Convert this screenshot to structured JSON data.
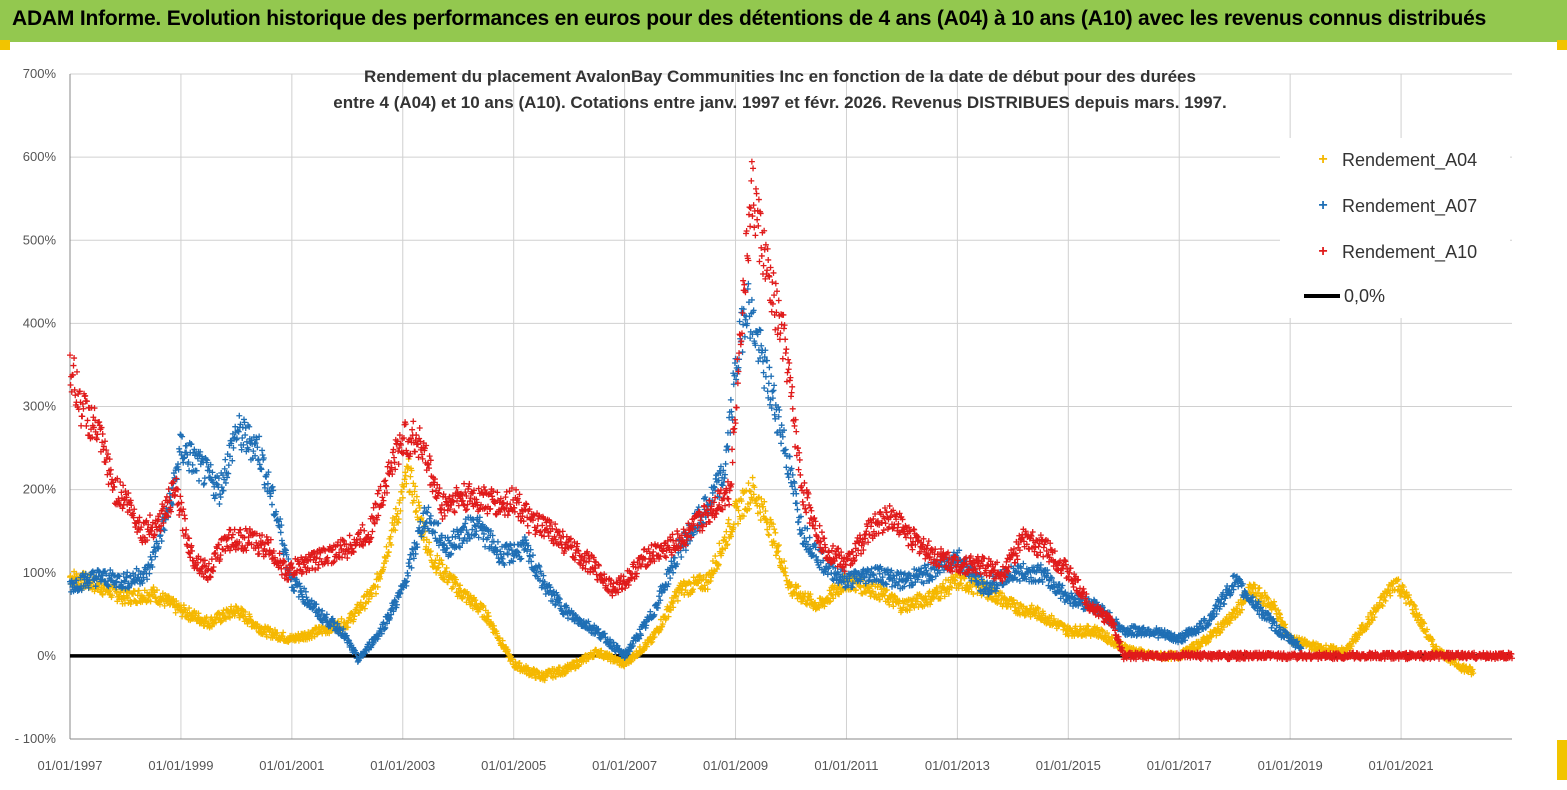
{
  "header": {
    "banner_title": "ADAM Informe. Evolution historique des performances en euros pour des détentions de 4 ans (A04) à 10 ans (A10) avec les revenus connus distribués"
  },
  "colors": {
    "banner": "#93c84f",
    "corner": "#f2c400",
    "A04": "#f5b800",
    "A07": "#1f6fb5",
    "A10": "#e01b1b",
    "zero": "#000000",
    "grid": "#d0d0d0"
  },
  "chart_data": {
    "type": "scatter",
    "title_line1": "Rendement du placement AvalonBay Communities Inc en fonction de la date de début pour des durées",
    "title_line2": "entre 4 (A04) et 10 ans (A10). Cotations entre janv. 1997 et févr. 2026. Revenus DISTRIBUES depuis mars. 1997.",
    "xlabel": "",
    "ylabel": "",
    "ylim": [
      -100,
      700
    ],
    "yticks": [
      "- 100%",
      "0%",
      "100%",
      "200%",
      "300%",
      "400%",
      "500%",
      "600%",
      "700%"
    ],
    "xlim": [
      1997.0,
      2023.0
    ],
    "xticks": [
      "01/01/1997",
      "01/01/1999",
      "01/01/2001",
      "01/01/2003",
      "01/01/2005",
      "01/01/2007",
      "01/01/2009",
      "01/01/2011",
      "01/01/2013",
      "01/01/2015",
      "01/01/2017",
      "01/01/2019",
      "01/01/2021"
    ],
    "grid": true,
    "legend_position": "top-right",
    "series": [
      {
        "name": "Rendement_A04",
        "marker": "+",
        "x": [
          1997.0,
          1997.5,
          1998.0,
          1998.5,
          1999.0,
          1999.5,
          2000.0,
          2000.5,
          2001.0,
          2001.5,
          2002.0,
          2002.5,
          2002.9,
          2003.1,
          2003.5,
          2004.0,
          2004.5,
          2005.0,
          2005.5,
          2006.0,
          2006.5,
          2007.0,
          2007.5,
          2008.0,
          2008.5,
          2009.0,
          2009.3,
          2009.6,
          2010.0,
          2010.5,
          2011.0,
          2011.5,
          2012.0,
          2012.5,
          2013.0,
          2013.5,
          2014.0,
          2014.5,
          2015.0,
          2015.5,
          2016.0,
          2016.5,
          2017.0,
          2017.5,
          2018.0,
          2018.3,
          2018.7,
          2019.0,
          2019.5,
          2020.0,
          2020.5,
          2020.9,
          2021.2,
          2021.6,
          2022.0,
          2022.3
        ],
        "y": [
          95,
          85,
          70,
          75,
          55,
          40,
          55,
          30,
          20,
          30,
          40,
          80,
          170,
          220,
          120,
          80,
          50,
          -10,
          -25,
          -15,
          5,
          -10,
          20,
          80,
          90,
          170,
          200,
          160,
          80,
          60,
          90,
          80,
          60,
          70,
          90,
          80,
          60,
          50,
          30,
          30,
          10,
          0,
          0,
          20,
          50,
          80,
          60,
          20,
          10,
          5,
          50,
          90,
          60,
          10,
          -10,
          -20
        ]
      },
      {
        "name": "Rendement_A07",
        "marker": "+",
        "x": [
          1997.0,
          1997.5,
          1998.0,
          1998.4,
          1998.8,
          1999.0,
          1999.3,
          1999.7,
          2000.0,
          2000.4,
          2000.8,
          2001.0,
          2001.5,
          2001.9,
          2002.2,
          2002.6,
          2003.0,
          2003.4,
          2003.8,
          2004.3,
          2004.8,
          2005.2,
          2005.6,
          2006.0,
          2006.5,
          2007.0,
          2007.5,
          2008.0,
          2008.5,
          2008.8,
          2009.0,
          2009.2,
          2009.5,
          2009.8,
          2010.2,
          2010.6,
          2011.0,
          2011.5,
          2012.0,
          2012.5,
          2013.0,
          2013.5,
          2014.0,
          2014.5,
          2015.0,
          2015.5,
          2016.0,
          2016.5,
          2017.0,
          2017.5,
          2018.0,
          2018.4,
          2018.8,
          2019.2
        ],
        "y": [
          85,
          95,
          90,
          100,
          180,
          250,
          230,
          200,
          270,
          250,
          150,
          90,
          50,
          30,
          -5,
          30,
          80,
          170,
          130,
          160,
          120,
          130,
          80,
          50,
          30,
          0,
          50,
          130,
          180,
          220,
          340,
          430,
          350,
          280,
          150,
          110,
          90,
          100,
          90,
          100,
          120,
          80,
          100,
          100,
          70,
          60,
          30,
          30,
          20,
          40,
          90,
          60,
          30,
          10
        ]
      },
      {
        "name": "Rendement_A10",
        "marker": "+",
        "x": [
          1997.0,
          1997.2,
          1997.5,
          1997.8,
          1998.0,
          1998.3,
          1998.6,
          1998.9,
          1999.2,
          1999.5,
          1999.8,
          2000.2,
          2000.6,
          2000.9,
          2001.2,
          2001.6,
          2002.0,
          2002.4,
          2002.8,
          2003.0,
          2003.3,
          2003.7,
          2004.0,
          2004.4,
          2004.8,
          2005.0,
          2005.3,
          2005.7,
          2006.0,
          2006.4,
          2006.8,
          2007.0,
          2007.4,
          2007.8,
          2008.2,
          2008.6,
          2008.9,
          2009.1,
          2009.3,
          2009.6,
          2009.9,
          2010.2,
          2010.6,
          2011.0,
          2011.4,
          2011.8,
          2012.2,
          2012.6,
          2013.0,
          2013.4,
          2013.8,
          2014.2,
          2014.6,
          2015.0,
          2015.4,
          2015.8,
          2016.0,
          2016.5,
          2017.0,
          2018.0,
          2019.0,
          2020.0,
          2021.0,
          2022.0,
          2023.0
        ],
        "y": [
          350,
          300,
          270,
          200,
          190,
          150,
          160,
          200,
          120,
          100,
          140,
          140,
          130,
          100,
          110,
          120,
          130,
          150,
          230,
          260,
          260,
          180,
          190,
          190,
          180,
          190,
          160,
          150,
          130,
          110,
          80,
          90,
          120,
          130,
          150,
          180,
          200,
          400,
          560,
          450,
          370,
          200,
          130,
          110,
          150,
          170,
          140,
          120,
          110,
          110,
          100,
          140,
          130,
          100,
          60,
          40,
          0,
          0,
          0,
          0,
          0,
          0,
          0,
          0,
          0
        ]
      },
      {
        "name": "0,0%",
        "type": "line",
        "x": [
          1997.0,
          2023.0
        ],
        "y": [
          0,
          0
        ]
      }
    ]
  }
}
